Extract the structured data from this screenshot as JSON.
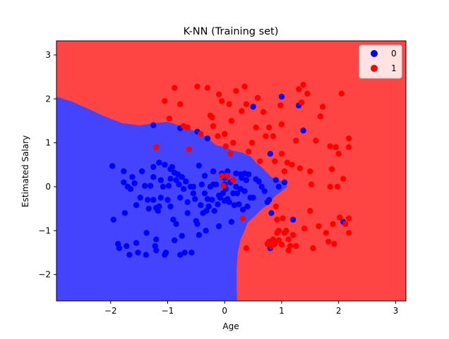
{
  "chart_data": {
    "type": "scatter",
    "title": "K-NN (Training set)",
    "xlabel": "Age",
    "ylabel": "Estimated Salary",
    "xlim": [
      -2.95,
      3.18
    ],
    "ylim": [
      -2.6,
      3.32
    ],
    "xticks": [
      -2,
      -1,
      0,
      1,
      2,
      3
    ],
    "yticks": [
      -2,
      -1,
      0,
      1,
      2,
      3
    ],
    "grid": false,
    "legend_position": "top-right",
    "decision_regions": {
      "class_0_color": "#4444ff",
      "class_1_color": "#ff4444",
      "boundary_class_0_side": [
        [
          -2.95,
          2.05
        ],
        [
          -2.7,
          1.95
        ],
        [
          -2.4,
          1.78
        ],
        [
          -2.1,
          1.6
        ],
        [
          -1.8,
          1.45
        ],
        [
          -1.5,
          1.4
        ],
        [
          -1.2,
          1.45
        ],
        [
          -1.0,
          1.48
        ],
        [
          -0.85,
          1.42
        ],
        [
          -0.7,
          1.35
        ],
        [
          -0.55,
          1.28
        ],
        [
          -0.4,
          1.2
        ],
        [
          -0.25,
          1.05
        ],
        [
          -0.15,
          0.95
        ],
        [
          0.0,
          0.9
        ],
        [
          0.15,
          0.82
        ],
        [
          0.3,
          0.78
        ],
        [
          0.45,
          0.7
        ],
        [
          0.55,
          0.55
        ],
        [
          0.62,
          0.48
        ],
        [
          0.72,
          0.35
        ],
        [
          0.82,
          0.22
        ],
        [
          0.9,
          0.18
        ],
        [
          1.0,
          0.12
        ],
        [
          1.08,
          0.1
        ],
        [
          1.1,
          0.0
        ],
        [
          1.0,
          -0.1
        ],
        [
          0.9,
          -0.2
        ],
        [
          0.82,
          -0.3
        ],
        [
          0.75,
          -0.42
        ],
        [
          0.66,
          -0.5
        ],
        [
          0.58,
          -0.6
        ],
        [
          0.5,
          -0.7
        ],
        [
          0.4,
          -0.82
        ],
        [
          0.35,
          -1.0
        ],
        [
          0.28,
          -1.2
        ],
        [
          0.23,
          -1.5
        ],
        [
          0.21,
          -1.9
        ],
        [
          0.21,
          -2.3
        ],
        [
          0.22,
          -2.6
        ]
      ]
    },
    "series": [
      {
        "name": "0",
        "color": "#0000ff",
        "points": [
          [
            -1.97,
            0.47
          ],
          [
            -1.95,
            -0.75
          ],
          [
            -1.87,
            -1.3
          ],
          [
            -1.85,
            -1.4
          ],
          [
            -1.77,
            0.35
          ],
          [
            -1.77,
            0.1
          ],
          [
            -1.75,
            -0.6
          ],
          [
            -1.72,
            -1.35
          ],
          [
            -1.7,
            0.0
          ],
          [
            -1.67,
            -1.55
          ],
          [
            -1.65,
            -0.05
          ],
          [
            -1.62,
            0.22
          ],
          [
            -1.58,
            0.08
          ],
          [
            -1.55,
            -1.28
          ],
          [
            -1.55,
            -0.42
          ],
          [
            -1.52,
            -1.5
          ],
          [
            -1.48,
            -0.25
          ],
          [
            -1.45,
            0.35
          ],
          [
            -1.4,
            0.02
          ],
          [
            -1.38,
            -1.55
          ],
          [
            -1.37,
            -1.05
          ],
          [
            -1.35,
            -0.3
          ],
          [
            -1.33,
            -0.5
          ],
          [
            -1.3,
            0.02
          ],
          [
            -1.25,
            0.22
          ],
          [
            -1.25,
            -0.3
          ],
          [
            -1.22,
            -1.35
          ],
          [
            -1.2,
            -0.48
          ],
          [
            -1.2,
            -1.2
          ],
          [
            -1.2,
            -1.45
          ],
          [
            -1.17,
            -0.55
          ],
          [
            -1.15,
            -0.45
          ],
          [
            -1.12,
            -0.25
          ],
          [
            -1.12,
            0.15
          ],
          [
            -1.08,
            0.0
          ],
          [
            -1.05,
            -1.55
          ],
          [
            -1.03,
            -1.5
          ],
          [
            -1.0,
            -0.3
          ],
          [
            -0.98,
            0.02
          ],
          [
            -0.95,
            -0.45
          ],
          [
            -0.95,
            0.18
          ],
          [
            -0.92,
            0.45
          ],
          [
            -0.9,
            -0.75
          ],
          [
            -0.88,
            -1.22
          ],
          [
            -0.85,
            -0.85
          ],
          [
            -0.85,
            0.15
          ],
          [
            -0.82,
            0.28
          ],
          [
            -0.8,
            0.05
          ],
          [
            -0.78,
            -0.25
          ],
          [
            -0.78,
            -1.55
          ],
          [
            -0.75,
            -1.12
          ],
          [
            -0.72,
            -0.05
          ],
          [
            -0.7,
            -1.5
          ],
          [
            -0.68,
            0.12
          ],
          [
            -0.65,
            -0.35
          ],
          [
            -0.65,
            -0.6
          ],
          [
            -0.6,
            0.0
          ],
          [
            -0.58,
            -1.5
          ],
          [
            -0.55,
            -0.15
          ],
          [
            -0.52,
            -0.28
          ],
          [
            -0.5,
            -0.78
          ],
          [
            -0.48,
            -0.85
          ],
          [
            -0.45,
            -1.1
          ],
          [
            -0.42,
            -0.42
          ],
          [
            -0.4,
            0.05
          ],
          [
            -0.38,
            -0.6
          ],
          [
            -0.35,
            0.25
          ],
          [
            -0.33,
            -1.0
          ],
          [
            -0.32,
            -0.55
          ],
          [
            -0.3,
            -0.28
          ],
          [
            -0.28,
            -0.45
          ],
          [
            -0.25,
            0.0
          ],
          [
            -0.22,
            -0.3
          ],
          [
            -0.2,
            0.35
          ],
          [
            -0.18,
            -0.55
          ],
          [
            -0.15,
            0.05
          ],
          [
            -0.12,
            -0.4
          ],
          [
            -0.1,
            -0.2
          ],
          [
            -0.1,
            -0.9
          ],
          [
            -0.08,
            -0.25
          ],
          [
            -0.05,
            0.3
          ],
          [
            -0.03,
            -0.15
          ],
          [
            0.0,
            -0.32
          ],
          [
            0.0,
            0.2
          ],
          [
            0.02,
            -0.05
          ],
          [
            0.05,
            -0.28
          ],
          [
            0.05,
            0.35
          ],
          [
            0.08,
            -0.35
          ],
          [
            0.1,
            0.1
          ],
          [
            0.12,
            -0.8
          ],
          [
            0.15,
            -0.15
          ],
          [
            0.17,
            -0.42
          ],
          [
            0.2,
            0.3
          ],
          [
            0.22,
            -0.15
          ],
          [
            0.25,
            -0.4
          ],
          [
            0.28,
            0.28
          ],
          [
            0.3,
            0.2
          ],
          [
            0.32,
            -0.52
          ],
          [
            0.35,
            -0.1
          ],
          [
            0.38,
            0.15
          ],
          [
            0.4,
            -0.45
          ],
          [
            0.42,
            0.28
          ],
          [
            0.45,
            -0.25
          ],
          [
            0.5,
            -0.25
          ],
          [
            0.55,
            0.17
          ],
          [
            0.6,
            0.12
          ],
          [
            0.65,
            0.0
          ],
          [
            0.7,
            -0.1
          ],
          [
            0.75,
            -0.35
          ],
          [
            0.78,
            -0.3
          ],
          [
            0.9,
            0.15
          ],
          [
            0.82,
            -0.6
          ],
          [
            1.05,
            0.1
          ],
          [
            -0.95,
            0.4
          ],
          [
            -1.05,
            0.5
          ],
          [
            -1.15,
            0.55
          ],
          [
            -1.25,
            0.45
          ],
          [
            -0.88,
            0.32
          ],
          [
            -0.75,
            0.22
          ],
          [
            -0.55,
            0.0
          ],
          [
            -0.45,
            0.48
          ],
          [
            -0.35,
            -0.15
          ],
          [
            -0.2,
            0.05
          ],
          [
            0.0,
            0.05
          ],
          [
            0.2,
            0.0
          ],
          [
            0.35,
            0.3
          ],
          [
            0.28,
            -0.05
          ],
          [
            -1.25,
            1.4
          ],
          [
            -0.78,
            1.33
          ],
          [
            -0.48,
            1.25
          ],
          [
            -0.3,
            1.1
          ],
          [
            0.5,
            1.82
          ],
          [
            1.0,
            2.05
          ],
          [
            1.3,
            1.85
          ],
          [
            1.38,
            1.28
          ],
          [
            0.8,
            0.75
          ],
          [
            0.95,
            0.0
          ],
          [
            1.2,
            -0.75
          ],
          [
            0.8,
            -1.4
          ],
          [
            2.08,
            -0.8
          ]
        ]
      },
      {
        "name": "1",
        "color": "#ff0000",
        "points": [
          [
            -1.2,
            0.9
          ],
          [
            -1.05,
            1.95
          ],
          [
            -0.97,
            1.55
          ],
          [
            -0.88,
            2.25
          ],
          [
            -0.78,
            1.88
          ],
          [
            -0.72,
            1.38
          ],
          [
            -0.65,
            1.35
          ],
          [
            -0.62,
            0.85
          ],
          [
            -0.48,
            2.28
          ],
          [
            -0.42,
            1.2
          ],
          [
            -0.3,
            2.25
          ],
          [
            -0.25,
            1.62
          ],
          [
            -0.22,
            1.58
          ],
          [
            -0.2,
            1.38
          ],
          [
            -0.12,
            1.15
          ],
          [
            -0.1,
            2.1
          ],
          [
            -0.05,
            1.95
          ],
          [
            0.0,
            1.2
          ],
          [
            0.02,
            0.92
          ],
          [
            0.08,
            1.88
          ],
          [
            0.1,
            0.75
          ],
          [
            0.12,
            1.5
          ],
          [
            0.15,
            1.0
          ],
          [
            0.2,
            2.18
          ],
          [
            0.3,
            1.72
          ],
          [
            0.35,
            2.28
          ],
          [
            0.38,
            1.88
          ],
          [
            0.42,
            0.8
          ],
          [
            0.48,
            1.0
          ],
          [
            0.55,
            1.35
          ],
          [
            0.58,
            2.02
          ],
          [
            0.62,
            0.58
          ],
          [
            -0.05,
            0.25
          ],
          [
            -0.02,
            0.02
          ],
          [
            0.05,
            0.25
          ],
          [
            0.15,
            0.15
          ],
          [
            0.32,
            -0.72
          ],
          [
            0.38,
            -1.4
          ],
          [
            0.68,
            1.7
          ],
          [
            0.72,
            1.15
          ],
          [
            0.78,
            1.35
          ],
          [
            0.85,
            1.15
          ],
          [
            0.88,
            0.58
          ],
          [
            0.9,
            -0.45
          ],
          [
            0.92,
            -0.75
          ],
          [
            0.95,
            -1.0
          ],
          [
            0.98,
            1.85
          ],
          [
            1.0,
            1.42
          ],
          [
            1.0,
            0.75
          ],
          [
            1.02,
            -0.72
          ],
          [
            1.05,
            0.35
          ],
          [
            1.08,
            -1.0
          ],
          [
            1.1,
            0.55
          ],
          [
            1.12,
            -1.2
          ],
          [
            1.15,
            -1.35
          ],
          [
            1.18,
            0.5
          ],
          [
            1.2,
            -1.1
          ],
          [
            1.25,
            1.05
          ],
          [
            1.3,
            2.22
          ],
          [
            1.32,
            0.42
          ],
          [
            1.35,
            1.92
          ],
          [
            1.38,
            2.32
          ],
          [
            1.4,
            -0.95
          ],
          [
            1.45,
            2.12
          ],
          [
            1.5,
            0.35
          ],
          [
            1.52,
            0.05
          ],
          [
            1.55,
            -1.4
          ],
          [
            1.6,
            1.05
          ],
          [
            1.65,
            -0.9
          ],
          [
            1.68,
            1.6
          ],
          [
            1.72,
            1.82
          ],
          [
            1.78,
            -1.05
          ],
          [
            1.82,
            -1.25
          ],
          [
            1.85,
            0.92
          ],
          [
            1.88,
            0.4
          ],
          [
            1.92,
            -1.3
          ],
          [
            1.95,
            0.9
          ],
          [
            1.98,
            0.0
          ],
          [
            2.0,
            0.75
          ],
          [
            2.02,
            -0.7
          ],
          [
            2.05,
            2.12
          ],
          [
            2.08,
            0.18
          ],
          [
            2.12,
            -0.85
          ],
          [
            2.18,
            1.1
          ],
          [
            2.18,
            0.9
          ],
          [
            2.18,
            -0.72
          ],
          [
            2.18,
            -1.05
          ],
          [
            0.75,
            -1.3
          ],
          [
            0.78,
            -1.25
          ],
          [
            0.82,
            -1.35
          ],
          [
            0.85,
            -1.2
          ],
          [
            0.88,
            -1.3
          ],
          [
            0.92,
            -1.05
          ],
          [
            0.95,
            -1.22
          ],
          [
            1.0,
            -1.32
          ],
          [
            1.05,
            -1.05
          ],
          [
            1.12,
            -1.45
          ],
          [
            1.25,
            -1.35
          ],
          [
            1.5,
            -0.55
          ],
          [
            1.85,
            0.0
          ],
          [
            1.9,
            -0.85
          ]
        ]
      }
    ]
  }
}
